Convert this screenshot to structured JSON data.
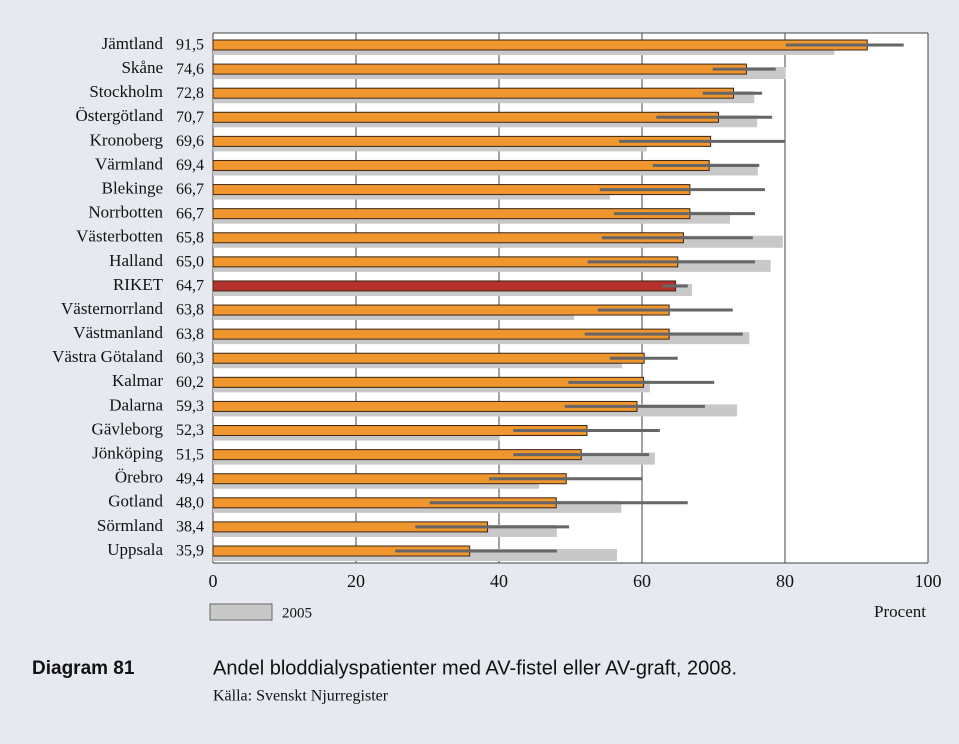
{
  "chart_data": {
    "type": "bar",
    "orientation": "horizontal",
    "figure_label": "Diagram 81",
    "title": "Andel bloddialyspatienter med AV-fistel eller AV-graft, 2008.",
    "source": "Källa: Svenskt Njurregister",
    "x_label": "Procent",
    "categories": [
      "Jämtland",
      "Skåne",
      "Stockholm",
      "Östergötland",
      "Kronoberg",
      "Värmland",
      "Blekinge",
      "Norrbotten",
      "Västerbotten",
      "Halland",
      "RIKET",
      "Västernorrland",
      "Västmanland",
      "Västra Götaland",
      "Kalmar",
      "Dalarna",
      "Gävleborg",
      "Jönköping",
      "Örebro",
      "Gotland",
      "Sörmland",
      "Uppsala"
    ],
    "series": [
      {
        "color": "#f0962e",
        "values": [
          91.5,
          74.6,
          72.8,
          70.7,
          69.6,
          69.4,
          66.7,
          66.7,
          65.8,
          65.0,
          64.7,
          63.8,
          63.8,
          60.3,
          60.2,
          59.3,
          52.3,
          51.5,
          49.4,
          48.0,
          38.4,
          35.9
        ],
        "value_labels": [
          "91,5",
          "74,6",
          "72,8",
          "70,7",
          "69,6",
          "69,4",
          "66,7",
          "66,7",
          "65,8",
          "65,0",
          "64,7",
          "63,8",
          "63,8",
          "60,3",
          "60,2",
          "59,3",
          "52,3",
          "51,5",
          "49,4",
          "48,0",
          "38,4",
          "35,9"
        ],
        "ci_low": [
          80.1,
          69.9,
          68.5,
          62.0,
          56.8,
          61.5,
          54.1,
          56.1,
          54.4,
          52.4,
          62.9,
          53.8,
          52.0,
          55.5,
          49.7,
          49.2,
          42.0,
          42.0,
          38.6,
          30.3,
          28.3,
          25.5
        ],
        "ci_high": [
          96.6,
          78.7,
          76.8,
          78.2,
          80.0,
          76.4,
          77.2,
          75.8,
          75.5,
          75.8,
          66.4,
          72.7,
          74.1,
          65.0,
          70.1,
          68.8,
          62.5,
          61.0,
          60.1,
          66.4,
          49.8,
          48.1
        ],
        "ci_color": "#666666"
      },
      {
        "name": "2005",
        "color": "#c8c8c8",
        "values": [
          86.9,
          80.1,
          75.7,
          76.1,
          60.7,
          76.2,
          55.5,
          72.3,
          79.7,
          78.0,
          67.0,
          50.5,
          75.0,
          57.2,
          61.1,
          73.3,
          40.1,
          61.8,
          45.6,
          57.1,
          48.1,
          56.5
        ]
      }
    ],
    "highlight": {
      "category": "RIKET",
      "color": "#b5322c"
    },
    "xlim": [
      0,
      100
    ],
    "xticks": [
      0,
      20,
      40,
      60,
      80,
      100
    ],
    "grid": true
  }
}
